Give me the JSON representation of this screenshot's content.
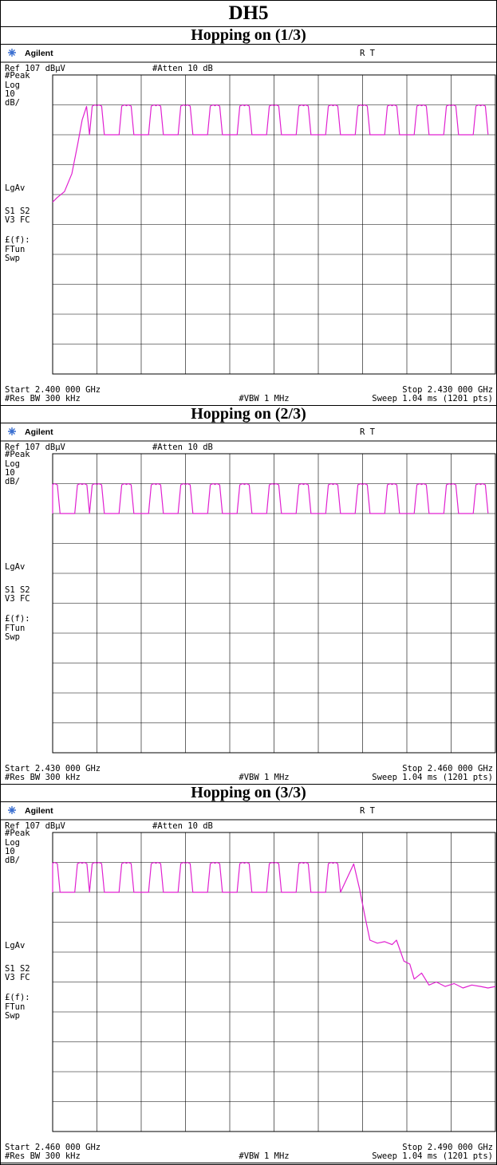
{
  "page": {
    "title": "DH5"
  },
  "panels": [
    {
      "title": "Hopping on (1/3)",
      "brand": "Agilent",
      "status_flags": "R  T",
      "ref_level": "Ref 107 dBμV",
      "atten": "#Atten 10 dB",
      "side_labels": {
        "detector": "#Peak",
        "scale_type": "Log",
        "scale_value": "10",
        "scale_unit": "dB/",
        "avg": "LgAv",
        "s1s2": "S1  S2",
        "v3fc": "V3  FC",
        "ff": "£(f):",
        "ftun": "FTun",
        "swp": "Swp"
      },
      "start": "Start 2.400 000 GHz",
      "stop": "Stop 2.430 000 GHz",
      "rbw": "#Res BW 300 kHz",
      "vbw": "#VBW 1 MHz",
      "sweep": "Sweep 1.04 ms (1201 pts)"
    },
    {
      "title": "Hopping on (2/3)",
      "brand": "Agilent",
      "status_flags": "R  T",
      "ref_level": "Ref 107 dBμV",
      "atten": "#Atten 10 dB",
      "side_labels": {
        "detector": "#Peak",
        "scale_type": "Log",
        "scale_value": "10",
        "scale_unit": "dB/",
        "avg": "LgAv",
        "s1s2": "S1  S2",
        "v3fc": "V3  FC",
        "ff": "£(f):",
        "ftun": "FTun",
        "swp": "Swp"
      },
      "start": "Start 2.430 000 GHz",
      "stop": "Stop 2.460 000 GHz",
      "rbw": "#Res BW 300 kHz",
      "vbw": "#VBW 1 MHz",
      "sweep": "Sweep 1.04 ms (1201 pts)"
    },
    {
      "title": "Hopping on (3/3)",
      "brand": "Agilent",
      "status_flags": "R  T",
      "ref_level": "Ref 107 dBμV",
      "atten": "#Atten 10 dB",
      "side_labels": {
        "detector": "#Peak",
        "scale_type": "Log",
        "scale_value": "10",
        "scale_unit": "dB/",
        "avg": "LgAv",
        "s1s2": "S1  S2",
        "v3fc": "V3  FC",
        "ff": "£(f):",
        "ftun": "FTun",
        "swp": "Swp"
      },
      "start": "Start 2.460 000 GHz",
      "stop": "Stop 2.490 000 GHz",
      "rbw": "#Res BW 300 kHz",
      "vbw": "#VBW 1 MHz",
      "sweep": "Sweep 1.04 ms (1201 pts)"
    }
  ],
  "chart_data": [
    {
      "type": "line",
      "title": "Hopping on (1/3)",
      "xlabel": "",
      "ylabel": "",
      "x_unit": "GHz",
      "y_unit": "dBμV",
      "xlim": [
        2.4,
        2.43
      ],
      "ylim": [
        7,
        107
      ],
      "grid": true,
      "color": "#e020d0",
      "trace": {
        "channel_peak_dbuv": 97,
        "channel_dip_dbuv": 87,
        "first_channel_ghz": 2.402,
        "channel_spacing_ghz": 0.001,
        "channel_count": 29,
        "noise_floor_dbuv": null
      },
      "x": [
        2.4,
        2.4003,
        2.4008,
        2.4013,
        2.4017,
        2.402,
        2.4023
      ],
      "y": [
        64.5,
        66.0,
        68.0,
        74.0,
        84.0,
        92.0,
        96.5
      ]
    },
    {
      "type": "line",
      "title": "Hopping on (2/3)",
      "xlabel": "",
      "ylabel": "",
      "x_unit": "GHz",
      "y_unit": "dBμV",
      "xlim": [
        2.43,
        2.46
      ],
      "ylim": [
        7,
        107
      ],
      "grid": true,
      "color": "#e020d0",
      "trace": {
        "channel_peak_dbuv": 97,
        "channel_dip_dbuv": 87,
        "first_channel_ghz": 2.43,
        "channel_spacing_ghz": 0.001,
        "channel_count": 31,
        "noise_floor_dbuv": null
      },
      "x": [],
      "y": []
    },
    {
      "type": "line",
      "title": "Hopping on (3/3)",
      "xlabel": "",
      "ylabel": "",
      "x_unit": "GHz",
      "y_unit": "dBμV",
      "xlim": [
        2.46,
        2.49
      ],
      "ylim": [
        7,
        107
      ],
      "grid": true,
      "color": "#e020d0",
      "trace": {
        "channel_peak_dbuv": 97,
        "channel_dip_dbuv": 87,
        "first_channel_ghz": 2.46,
        "channel_spacing_ghz": 0.001,
        "channel_count": 21,
        "noise_floor_dbuv": 55
      },
      "x": [
        2.4804,
        2.4808,
        2.4812,
        2.4815,
        2.482,
        2.4825,
        2.483,
        2.4833,
        2.4838,
        2.4842,
        2.4845,
        2.485,
        2.4855,
        2.486,
        2.4866,
        2.4872,
        2.4878,
        2.4884,
        2.489,
        2.4895,
        2.49
      ],
      "y": [
        96.5,
        88.0,
        78.0,
        71.0,
        70.0,
        70.5,
        69.5,
        71.0,
        64.0,
        63.0,
        58.0,
        60.0,
        56.0,
        57.0,
        55.5,
        56.5,
        55.0,
        56.0,
        55.5,
        55.0,
        55.5
      ]
    }
  ]
}
